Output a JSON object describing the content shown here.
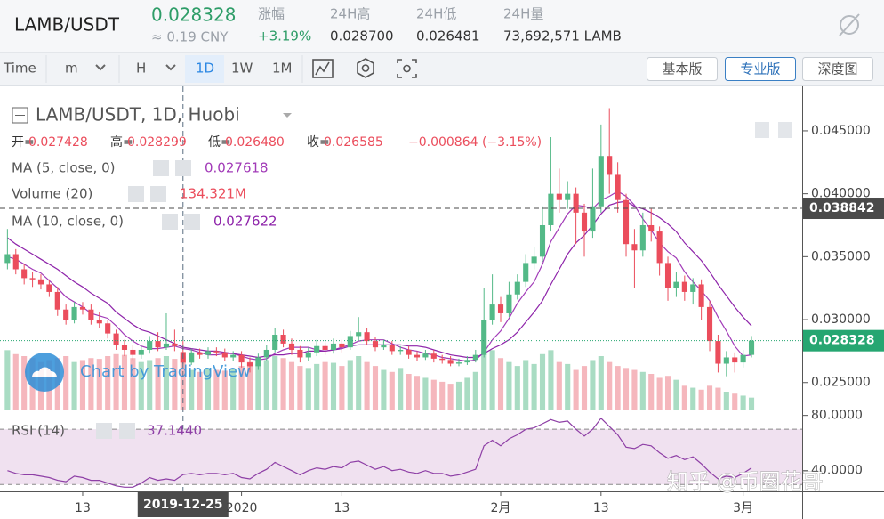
{
  "header": {
    "symbol": "LAMB/USDT",
    "price": "0.028328",
    "cny": "≈ 0.19 CNY",
    "stats": [
      {
        "label": "涨幅",
        "value": "+3.19%"
      },
      {
        "label": "24H高",
        "value": "0.028700"
      },
      {
        "label": "24H低",
        "value": "0.026481"
      },
      {
        "label": "24H量",
        "value": "73,692,571 LAMB"
      }
    ]
  },
  "toolbar": {
    "items": [
      "Time",
      "m",
      "H",
      "1D",
      "1W",
      "1M"
    ],
    "active": "1D",
    "versions": [
      "基本版",
      "专业版",
      "深度图"
    ],
    "active_version": "专业版"
  },
  "watermarks": [
    "Chart by TradingView",
    "知乎 @币圈花哥"
  ],
  "chart_data": [
    {
      "type": "candlestick",
      "title": "LAMB/USDT, 1D, Huobi",
      "ohlc_legend": [
        {
          "label": "开=",
          "value": "0.027428"
        },
        {
          "label": "高=",
          "value": "0.028299"
        },
        {
          "label": "低=",
          "value": "0.026480"
        },
        {
          "label": "收=",
          "value": "0.026585"
        }
      ],
      "change_label": "−0.000864 (−3.15%)",
      "up_color": "#53b987",
      "down_color": "#eb4d5c",
      "volume_up_color": "#a9dcc3",
      "volume_down_color": "#f5b7bd",
      "open": [
        0.0345,
        0.0352,
        0.034,
        0.0333,
        0.0332,
        0.0328,
        0.0322,
        0.0308,
        0.03,
        0.031,
        0.0308,
        0.03,
        0.0297,
        0.0289,
        0.028,
        0.0276,
        0.0272,
        0.0276,
        0.0283,
        0.0278,
        0.0281,
        0.027428,
        0.026585,
        0.0274,
        0.0272,
        0.0275,
        0.0274,
        0.027,
        0.0272,
        0.0266,
        0.0263,
        0.027,
        0.0276,
        0.0288,
        0.0281,
        0.0276,
        0.027,
        0.0274,
        0.0279,
        0.0276,
        0.0281,
        0.0278,
        0.0287,
        0.029,
        0.0283,
        0.0278,
        0.028,
        0.0275,
        0.0276,
        0.0272,
        0.027,
        0.0273,
        0.0269,
        0.0268,
        0.0265,
        0.0266,
        0.0268,
        0.0272,
        0.03,
        0.0312,
        0.0305,
        0.032,
        0.033,
        0.0345,
        0.035,
        0.0375,
        0.04,
        0.0395,
        0.04,
        0.0385,
        0.037,
        0.039,
        0.043,
        0.0415,
        0.0395,
        0.036,
        0.0355,
        0.0375,
        0.037,
        0.0345,
        0.0325,
        0.033,
        0.0322,
        0.0328,
        0.031,
        0.0283,
        0.0265,
        0.027,
        0.0266,
        0.0272
      ],
      "high": [
        0.0372,
        0.0356,
        0.0344,
        0.0338,
        0.0336,
        0.0332,
        0.0326,
        0.0312,
        0.0314,
        0.0314,
        0.0312,
        0.0306,
        0.03,
        0.0292,
        0.0284,
        0.028,
        0.0279,
        0.0287,
        0.029,
        0.0305,
        0.0292,
        0.028299,
        0.0277,
        0.0277,
        0.0278,
        0.0278,
        0.0277,
        0.0275,
        0.0275,
        0.027,
        0.0273,
        0.028,
        0.0293,
        0.0292,
        0.0285,
        0.0279,
        0.0278,
        0.0284,
        0.0282,
        0.0285,
        0.0284,
        0.0291,
        0.0302,
        0.0293,
        0.0286,
        0.0284,
        0.0283,
        0.0279,
        0.0279,
        0.0275,
        0.0276,
        0.0276,
        0.0272,
        0.0271,
        0.0269,
        0.0271,
        0.0276,
        0.0325,
        0.0336,
        0.0318,
        0.033,
        0.0336,
        0.0352,
        0.0358,
        0.039,
        0.0445,
        0.042,
        0.041,
        0.0405,
        0.0392,
        0.042,
        0.0455,
        0.0468,
        0.0425,
        0.04,
        0.0372,
        0.0385,
        0.0388,
        0.0374,
        0.035,
        0.0338,
        0.0335,
        0.0333,
        0.0332,
        0.0315,
        0.0288,
        0.0275,
        0.0274,
        0.0276,
        0.0287
      ],
      "low": [
        0.034,
        0.0336,
        0.0328,
        0.0326,
        0.0324,
        0.0318,
        0.0303,
        0.0296,
        0.0297,
        0.0304,
        0.0296,
        0.0293,
        0.0285,
        0.0276,
        0.0271,
        0.0268,
        0.0269,
        0.0273,
        0.0275,
        0.0276,
        0.0275,
        0.02648,
        0.0264,
        0.0269,
        0.0269,
        0.0271,
        0.0267,
        0.0267,
        0.0262,
        0.0258,
        0.026,
        0.0267,
        0.0274,
        0.0278,
        0.0272,
        0.0266,
        0.0267,
        0.0271,
        0.0272,
        0.0273,
        0.0274,
        0.0276,
        0.0283,
        0.028,
        0.0275,
        0.0276,
        0.0272,
        0.0272,
        0.0269,
        0.0267,
        0.0268,
        0.0266,
        0.0265,
        0.0263,
        0.0263,
        0.0264,
        0.0266,
        0.027,
        0.0296,
        0.0298,
        0.0302,
        0.0316,
        0.0326,
        0.034,
        0.0346,
        0.037,
        0.0385,
        0.0388,
        0.036,
        0.035,
        0.0365,
        0.0385,
        0.04,
        0.0385,
        0.035,
        0.0325,
        0.035,
        0.0362,
        0.0335,
        0.0315,
        0.0318,
        0.0315,
        0.0312,
        0.03,
        0.0275,
        0.0258,
        0.0255,
        0.0258,
        0.0262,
        0.027
      ],
      "close": [
        0.0352,
        0.034,
        0.0333,
        0.0332,
        0.0328,
        0.0322,
        0.0308,
        0.03,
        0.031,
        0.0308,
        0.03,
        0.0297,
        0.0289,
        0.028,
        0.0276,
        0.0272,
        0.0276,
        0.0283,
        0.0278,
        0.0281,
        0.0279,
        0.026585,
        0.0274,
        0.0272,
        0.0275,
        0.0274,
        0.027,
        0.0272,
        0.0266,
        0.0263,
        0.027,
        0.0276,
        0.0288,
        0.0281,
        0.0276,
        0.027,
        0.0274,
        0.0279,
        0.0276,
        0.0281,
        0.0278,
        0.0287,
        0.029,
        0.0283,
        0.0278,
        0.028,
        0.0275,
        0.0276,
        0.0272,
        0.027,
        0.0273,
        0.0269,
        0.0268,
        0.0265,
        0.0266,
        0.0268,
        0.0272,
        0.03,
        0.0312,
        0.0305,
        0.032,
        0.033,
        0.0345,
        0.035,
        0.0375,
        0.04,
        0.0395,
        0.04,
        0.0385,
        0.037,
        0.039,
        0.043,
        0.0415,
        0.0395,
        0.036,
        0.0355,
        0.0375,
        0.037,
        0.0345,
        0.0325,
        0.033,
        0.0322,
        0.0328,
        0.031,
        0.0283,
        0.0265,
        0.027,
        0.0266,
        0.0272,
        0.028328
      ],
      "volume_name": "Volume (20)",
      "volume_legend_value": "134.321M",
      "volume_lim": [
        0,
        180
      ],
      "volume": [
        150,
        140,
        135,
        130,
        120,
        125,
        130,
        135,
        120,
        125,
        130,
        128,
        135,
        140,
        138,
        130,
        120,
        125,
        130,
        135,
        128,
        134.321,
        100,
        95,
        105,
        100,
        98,
        102,
        110,
        120,
        115,
        125,
        135,
        130,
        120,
        110,
        105,
        115,
        120,
        118,
        110,
        125,
        135,
        120,
        110,
        100,
        95,
        105,
        90,
        85,
        80,
        75,
        70,
        65,
        70,
        80,
        95,
        140,
        150,
        130,
        120,
        110,
        125,
        115,
        140,
        150,
        120,
        115,
        100,
        110,
        125,
        135,
        120,
        110,
        105,
        100,
        95,
        90,
        80,
        85,
        75,
        60,
        55,
        50,
        60,
        55,
        45,
        40,
        35,
        30
      ],
      "series": [
        {
          "name": "MA (5, close, 0)",
          "legend_value": "0.027618",
          "color": "#a23bb8",
          "values": [
            0.035,
            0.0348,
            0.0344,
            0.034,
            0.0337,
            0.0331,
            0.0325,
            0.0318,
            0.0314,
            0.031,
            0.0305,
            0.0303,
            0.0301,
            0.0295,
            0.0288,
            0.0283,
            0.0279,
            0.0277,
            0.0277,
            0.0278,
            0.0279,
            0.0277,
            0.0276,
            0.0274,
            0.0272,
            0.0272,
            0.0273,
            0.0273,
            0.0271,
            0.0269,
            0.0268,
            0.0269,
            0.0273,
            0.0276,
            0.0278,
            0.0278,
            0.0278,
            0.0276,
            0.0275,
            0.0276,
            0.0278,
            0.028,
            0.0283,
            0.0284,
            0.0284,
            0.0284,
            0.0281,
            0.0278,
            0.0276,
            0.0275,
            0.0273,
            0.0272,
            0.027,
            0.0269,
            0.0268,
            0.0267,
            0.0268,
            0.0274,
            0.0284,
            0.0291,
            0.0301,
            0.0313,
            0.0322,
            0.033,
            0.0344,
            0.0362,
            0.0373,
            0.0384,
            0.0391,
            0.039,
            0.0388,
            0.0395,
            0.0398,
            0.0402,
            0.0398,
            0.0391,
            0.038,
            0.0371,
            0.0361,
            0.0354,
            0.0349,
            0.0338,
            0.033,
            0.0323,
            0.0315,
            0.0302,
            0.0291,
            0.0279,
            0.0271,
            0.0272
          ]
        },
        {
          "name": "MA (10, close, 0)",
          "legend_value": "0.027622",
          "color": "#8e24aa",
          "values": [
            0.0365,
            0.036,
            0.0356,
            0.0352,
            0.0348,
            0.0344,
            0.034,
            0.0335,
            0.033,
            0.0326,
            0.0321,
            0.0317,
            0.0313,
            0.0306,
            0.0301,
            0.0296,
            0.0292,
            0.029,
            0.0287,
            0.0284,
            0.0281,
            0.0278,
            0.0277,
            0.0276,
            0.0275,
            0.0275,
            0.0274,
            0.0273,
            0.0272,
            0.0271,
            0.027,
            0.0271,
            0.0272,
            0.0272,
            0.0273,
            0.0273,
            0.0275,
            0.0275,
            0.0275,
            0.0276,
            0.0277,
            0.0279,
            0.028,
            0.028,
            0.028,
            0.028,
            0.028,
            0.028,
            0.0279,
            0.0279,
            0.0278,
            0.0276,
            0.0274,
            0.0272,
            0.0271,
            0.027,
            0.027,
            0.0273,
            0.0277,
            0.028,
            0.0284,
            0.029,
            0.0298,
            0.0306,
            0.0315,
            0.0328,
            0.034,
            0.0352,
            0.0361,
            0.0367,
            0.0375,
            0.0384,
            0.0391,
            0.0393,
            0.0394,
            0.039,
            0.0388,
            0.0385,
            0.0381,
            0.0376,
            0.037,
            0.0361,
            0.0354,
            0.0347,
            0.0338,
            0.0328,
            0.0319,
            0.031,
            0.0302,
            0.0295
          ]
        }
      ],
      "xlim": [
        -0.89,
        95.06
      ],
      "xticks": [
        {
          "value": 9,
          "label": "13"
        },
        {
          "value": 28,
          "label": "2020"
        },
        {
          "value": 40,
          "label": "13"
        },
        {
          "value": 59,
          "label": "2月"
        },
        {
          "value": 71,
          "label": "13"
        },
        {
          "value": 88,
          "label": "3月"
        }
      ],
      "crosshair_x": {
        "value": 21,
        "label": "2019-12-25"
      },
      "crosshair_price": {
        "value": 0.038842,
        "label": "0.038842"
      },
      "last_price": {
        "value": 0.028328,
        "label": "0.028328"
      },
      "ylim": [
        0.02286,
        0.04832
      ],
      "yticks": [
        {
          "value": 0.025,
          "label": "0.025000"
        },
        {
          "value": 0.03,
          "label": "0.030000"
        },
        {
          "value": 0.035,
          "label": "0.035000"
        },
        {
          "value": 0.04,
          "label": "0.040000"
        },
        {
          "value": 0.045,
          "label": "0.045000"
        }
      ]
    },
    {
      "type": "line",
      "title": "RSI (14)",
      "legend_value": "37.1440",
      "band": [
        30,
        70
      ],
      "band_color": "#f0e1f0",
      "series": [
        {
          "name": "RSI (14)",
          "color": "#8e3fa6",
          "values": [
            40,
            38,
            37,
            37,
            36,
            35,
            33,
            32,
            36,
            35,
            33,
            33,
            31,
            29,
            28,
            28,
            31,
            35,
            33,
            34,
            33,
            37.144,
            38,
            37,
            38,
            38,
            37,
            38,
            35,
            34,
            38,
            41,
            46,
            43,
            40,
            37,
            40,
            42,
            41,
            43,
            42,
            46,
            47,
            44,
            41,
            43,
            40,
            41,
            39,
            38,
            40,
            38,
            38,
            36,
            37,
            39,
            41,
            58,
            62,
            58,
            63,
            66,
            70,
            71,
            74,
            77,
            75,
            76,
            70,
            65,
            70,
            78,
            72,
            66,
            57,
            56,
            59,
            58,
            53,
            49,
            51,
            48,
            50,
            45,
            39,
            34,
            36,
            35,
            38,
            42
          ]
        }
      ],
      "ylim": [
        25,
        83
      ],
      "yticks": [
        {
          "value": 80,
          "label": "80.0000"
        },
        {
          "value": 40,
          "label": "40.0000"
        }
      ]
    }
  ]
}
